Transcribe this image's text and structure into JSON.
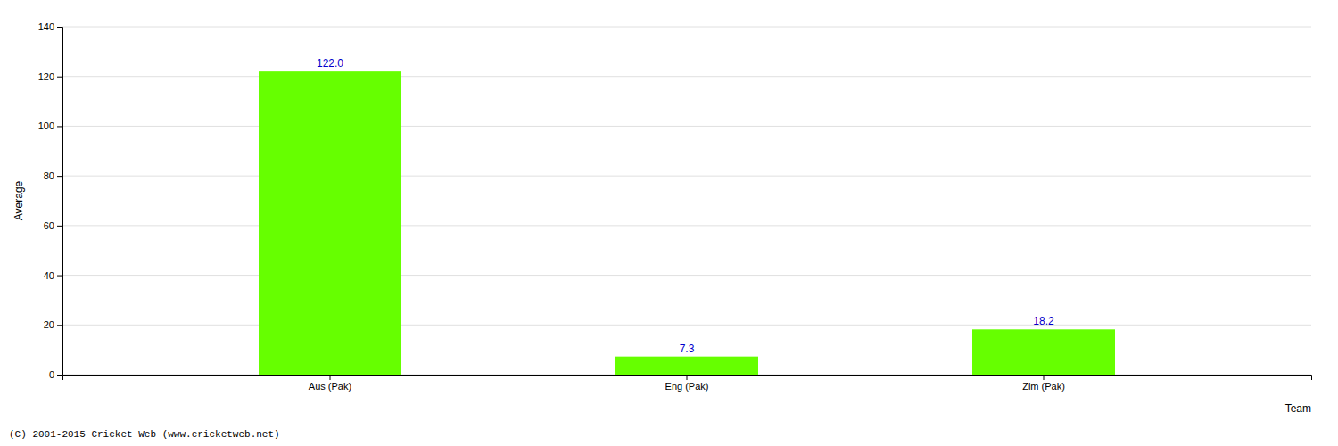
{
  "chart_data": {
    "type": "bar",
    "categories": [
      "Aus (Pak)",
      "Eng (Pak)",
      "Zim (Pak)"
    ],
    "values": [
      122.0,
      7.3,
      18.2
    ],
    "value_labels": [
      "122.0",
      "7.3",
      "18.2"
    ],
    "data_labels": true,
    "color": "#66ff00",
    "xlabel": "Team",
    "ylabel": "Average",
    "ylim": [
      0,
      140
    ],
    "yticks": [
      0,
      20,
      40,
      60,
      80,
      100,
      120,
      140
    ],
    "grid": true,
    "annotations": [
      "(C) 2001-2015 Cricket Web (www.cricketweb.net)"
    ]
  }
}
